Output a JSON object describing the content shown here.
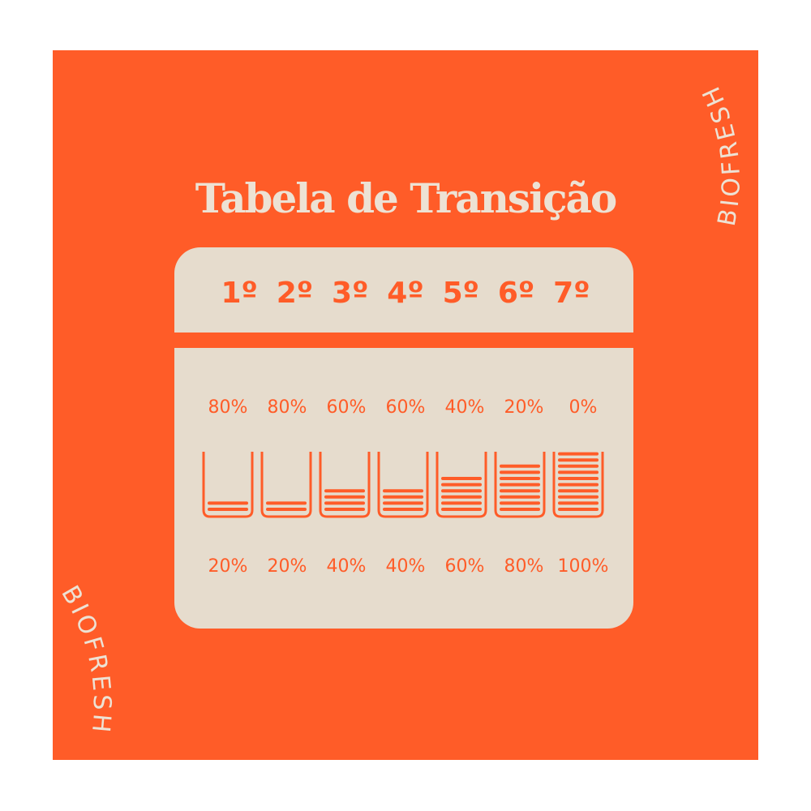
{
  "title": "Tabela de Transição",
  "brand": "BIOFRESH",
  "colors": {
    "background": "#FF5C28",
    "panel": "#E6DCCD",
    "text": "#EDE2D4"
  },
  "steps": [
    "1º",
    "2º",
    "3º",
    "4º",
    "5º",
    "6º",
    "7º"
  ],
  "top_percentages": [
    "80%",
    "80%",
    "60%",
    "60%",
    "40%",
    "20%",
    "0%"
  ],
  "bottom_percentages": [
    "20%",
    "20%",
    "40%",
    "40%",
    "60%",
    "80%",
    "100%"
  ],
  "cup_fill_percent": [
    20,
    20,
    40,
    40,
    60,
    80,
    100
  ]
}
